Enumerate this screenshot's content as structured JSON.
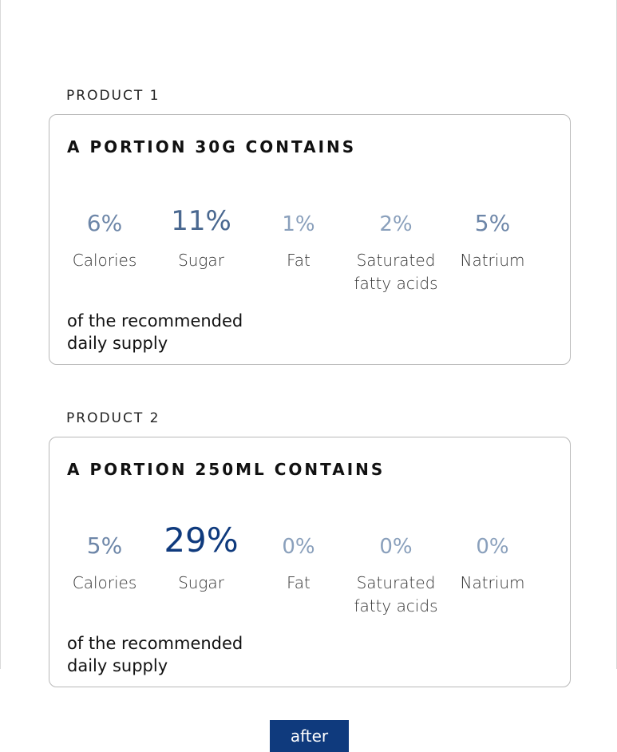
{
  "colors": {
    "accent_dark": "#0f3a7d",
    "accent_light": "#6d86a8"
  },
  "products": [
    {
      "label": "PRODUCT 1",
      "title": "A PORTION 30G CONTAINS",
      "metrics": [
        {
          "value": "6%",
          "label": "Calories"
        },
        {
          "value": "11%",
          "label": "Sugar"
        },
        {
          "value": "1%",
          "label": "Fat"
        },
        {
          "value": "2%",
          "label": "Saturated fatty acids"
        },
        {
          "value": "5%",
          "label": "Natrium"
        }
      ],
      "footnote": "of the recommended daily supply"
    },
    {
      "label": "PRODUCT 2",
      "title": "A PORTION 250ML CONTAINS",
      "metrics": [
        {
          "value": "5%",
          "label": "Calories"
        },
        {
          "value": "29%",
          "label": "Sugar"
        },
        {
          "value": "0%",
          "label": "Fat"
        },
        {
          "value": "0%",
          "label": "Saturated fatty acids"
        },
        {
          "value": "0%",
          "label": "Natrium"
        }
      ],
      "footnote": "of the recommended daily supply"
    }
  ],
  "after_button": "after"
}
